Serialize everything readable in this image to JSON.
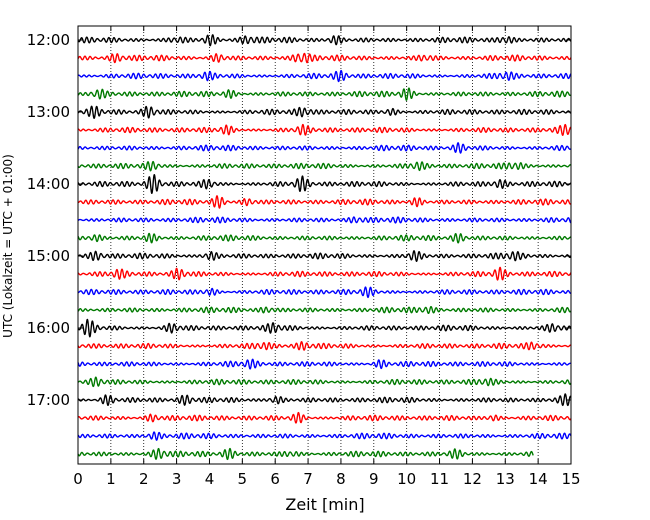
{
  "chart_data": {
    "type": "line",
    "title": "",
    "xlabel": "Zeit  [min]",
    "ylabel": "UTC (Lokalzeit = UTC + 01:00)",
    "xlim": [
      0,
      15
    ],
    "xticks": [
      "0",
      "1",
      "2",
      "3",
      "4",
      "5",
      "6",
      "7",
      "8",
      "9",
      "10",
      "11",
      "12",
      "13",
      "14",
      "15"
    ],
    "hour_labels": [
      "12:00",
      "13:00",
      "14:00",
      "15:00",
      "16:00",
      "17:00"
    ],
    "traces_per_hour": 4,
    "trace_count": 24,
    "trace_colors": [
      "#000000",
      "#ff0000",
      "#0000ff",
      "#007a00"
    ],
    "grid": "vertical dotted at each minute",
    "last_trace_end_min": 13.85,
    "bursts": [
      {
        "trace": 0,
        "t": 3.0,
        "a": 0.35
      },
      {
        "trace": 0,
        "t": 4.0,
        "a": 0.5
      },
      {
        "trace": 0,
        "t": 5.2,
        "a": 0.5
      },
      {
        "trace": 0,
        "t": 7.8,
        "a": 0.45
      },
      {
        "trace": 0,
        "t": 13.0,
        "a": 0.5
      },
      {
        "trace": 1,
        "t": 1.2,
        "a": 0.4
      },
      {
        "trace": 1,
        "t": 4.3,
        "a": 0.45
      },
      {
        "trace": 1,
        "t": 6.8,
        "a": 0.8
      },
      {
        "trace": 1,
        "t": 10.6,
        "a": 0.35
      },
      {
        "trace": 2,
        "t": 3.9,
        "a": 0.35
      },
      {
        "trace": 2,
        "t": 8.0,
        "a": 0.4
      },
      {
        "trace": 2,
        "t": 13.0,
        "a": 0.45
      },
      {
        "trace": 3,
        "t": 0.6,
        "a": 0.5
      },
      {
        "trace": 3,
        "t": 4.6,
        "a": 0.35
      },
      {
        "trace": 3,
        "t": 10.0,
        "a": 0.55
      },
      {
        "trace": 4,
        "t": 0.5,
        "a": 0.4
      },
      {
        "trace": 4,
        "t": 2.2,
        "a": 0.6
      },
      {
        "trace": 4,
        "t": 6.9,
        "a": 0.55
      },
      {
        "trace": 4,
        "t": 9.5,
        "a": 0.35
      },
      {
        "trace": 5,
        "t": 4.5,
        "a": 0.4
      },
      {
        "trace": 5,
        "t": 6.8,
        "a": 0.4
      },
      {
        "trace": 5,
        "t": 14.9,
        "a": 0.55
      },
      {
        "trace": 6,
        "t": 11.6,
        "a": 0.4
      },
      {
        "trace": 7,
        "t": 2.3,
        "a": 0.4
      },
      {
        "trace": 7,
        "t": 10.3,
        "a": 0.45
      },
      {
        "trace": 7,
        "t": 13.3,
        "a": 0.45
      },
      {
        "trace": 8,
        "t": 2.3,
        "a": 0.9
      },
      {
        "trace": 8,
        "t": 4.0,
        "a": 0.45
      },
      {
        "trace": 8,
        "t": 6.8,
        "a": 0.65
      },
      {
        "trace": 8,
        "t": 12.8,
        "a": 0.4
      },
      {
        "trace": 9,
        "t": 4.3,
        "a": 0.6
      },
      {
        "trace": 9,
        "t": 5.2,
        "a": 0.4
      },
      {
        "trace": 9,
        "t": 10.3,
        "a": 0.4
      },
      {
        "trace": 10,
        "t": 8.5,
        "a": 0.35
      },
      {
        "trace": 11,
        "t": 0.5,
        "a": 0.35
      },
      {
        "trace": 11,
        "t": 2.2,
        "a": 0.35
      },
      {
        "trace": 11,
        "t": 11.6,
        "a": 0.4
      },
      {
        "trace": 12,
        "t": 0.6,
        "a": 0.45
      },
      {
        "trace": 12,
        "t": 4.0,
        "a": 0.5
      },
      {
        "trace": 12,
        "t": 10.2,
        "a": 0.5
      },
      {
        "trace": 12,
        "t": 13.2,
        "a": 0.4
      },
      {
        "trace": 13,
        "t": 1.2,
        "a": 0.35
      },
      {
        "trace": 13,
        "t": 3.1,
        "a": 0.55
      },
      {
        "trace": 13,
        "t": 12.8,
        "a": 0.55
      },
      {
        "trace": 14,
        "t": 4.0,
        "a": 0.4
      },
      {
        "trace": 14,
        "t": 8.8,
        "a": 0.35
      },
      {
        "trace": 15,
        "t": 5.8,
        "a": 0.35
      },
      {
        "trace": 15,
        "t": 10.6,
        "a": 0.35
      },
      {
        "trace": 16,
        "t": 0.3,
        "a": 0.75
      },
      {
        "trace": 16,
        "t": 2.9,
        "a": 0.5
      },
      {
        "trace": 16,
        "t": 6.0,
        "a": 0.45
      },
      {
        "trace": 16,
        "t": 14.5,
        "a": 0.45
      },
      {
        "trace": 17,
        "t": 5.6,
        "a": 0.4
      },
      {
        "trace": 17,
        "t": 6.9,
        "a": 0.35
      },
      {
        "trace": 17,
        "t": 13.9,
        "a": 0.4
      },
      {
        "trace": 18,
        "t": 5.2,
        "a": 0.35
      },
      {
        "trace": 18,
        "t": 9.2,
        "a": 0.35
      },
      {
        "trace": 19,
        "t": 0.6,
        "a": 0.45
      },
      {
        "trace": 19,
        "t": 12.4,
        "a": 0.35
      },
      {
        "trace": 20,
        "t": 0.9,
        "a": 0.45
      },
      {
        "trace": 20,
        "t": 3.3,
        "a": 0.4
      },
      {
        "trace": 20,
        "t": 6.0,
        "a": 0.45
      },
      {
        "trace": 20,
        "t": 14.9,
        "a": 0.5
      },
      {
        "trace": 21,
        "t": 2.3,
        "a": 0.4
      },
      {
        "trace": 21,
        "t": 6.7,
        "a": 0.45
      },
      {
        "trace": 21,
        "t": 12.6,
        "a": 0.35
      },
      {
        "trace": 22,
        "t": 2.3,
        "a": 0.35
      },
      {
        "trace": 23,
        "t": 2.5,
        "a": 0.6
      },
      {
        "trace": 23,
        "t": 4.6,
        "a": 0.45
      },
      {
        "trace": 23,
        "t": 6.5,
        "a": 0.35
      },
      {
        "trace": 23,
        "t": 11.5,
        "a": 0.35
      }
    ]
  }
}
